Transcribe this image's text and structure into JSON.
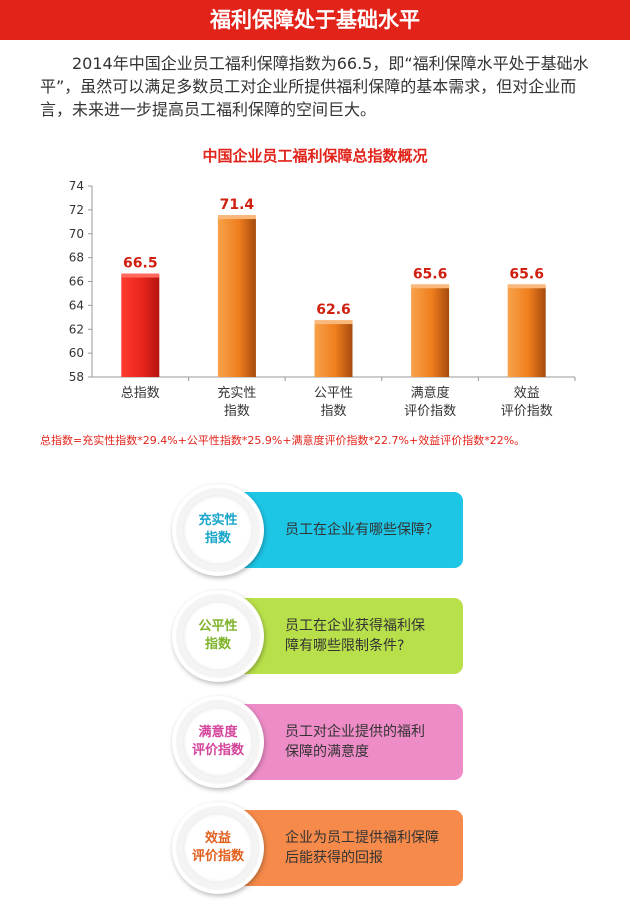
{
  "banner": {
    "title": "福利保障处于基础水平"
  },
  "intro": {
    "text": "2014年中国企业员工福利保障指数为66.5，即“福利保障水平处于基础水平”，虽然可以满足多数员工对企业所提供福利保障的基本需求，但对企业而言，未来进一步提高员工福利保障的空间巨大。"
  },
  "chart_data": {
    "type": "bar",
    "title": "中国企业员工福利保障总指数概况",
    "categories": [
      [
        "总指数"
      ],
      [
        "充实性",
        "指数"
      ],
      [
        "公平性",
        "指数"
      ],
      [
        "满意度",
        "评价指数"
      ],
      [
        "效益",
        "评价指数"
      ]
    ],
    "values": [
      66.5,
      71.4,
      62.6,
      65.6,
      65.6
    ],
    "value_labels": [
      "66.5",
      "71.4",
      "62.6",
      "65.6",
      "65.6"
    ],
    "ylim": [
      58,
      74
    ],
    "yticks": [
      58,
      60,
      62,
      64,
      66,
      68,
      70,
      72,
      74
    ],
    "grid": false,
    "colors": [
      "#e8251c",
      "#f07e1e",
      "#f07e1e",
      "#f07e1e",
      "#f07e1e"
    ]
  },
  "formula": {
    "text": "总指数=充实性指数*29.4%+公平性指数*25.9%+满意度评价指数*22.7%+效益评价指数*22%。"
  },
  "cards": [
    {
      "label": "充实性\n指数",
      "text": "员工在企业有哪些保障？",
      "color": "#1ec6e6",
      "label_color": "#1aa6c9"
    },
    {
      "label": "公平性\n指数",
      "text": "员工在企业获得福利保\n障有哪些限制条件?",
      "color": "#b8e04a",
      "label_color": "#7fb32a"
    },
    {
      "label": "满意度\n评价指数",
      "text": "员工对企业提供的福利\n保障的满意度",
      "color": "#ee8cc8",
      "label_color": "#d4459b"
    },
    {
      "label": "效益\n评价指数",
      "text": "企业为员工提供福利保障\n后能获得的回报",
      "color": "#f58a4a",
      "label_color": "#e0601f"
    }
  ]
}
